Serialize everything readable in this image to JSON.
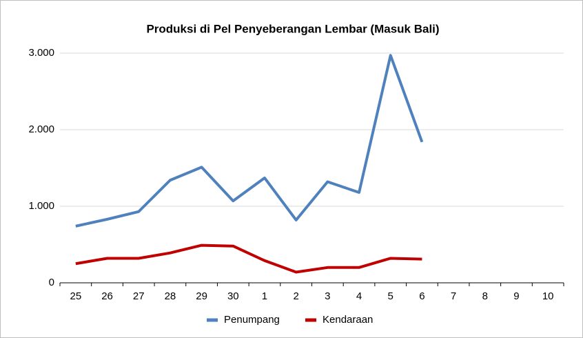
{
  "chart_data": {
    "type": "line",
    "title": "Produksi di Pel Penyeberangan Lembar (Masuk Bali)",
    "categories": [
      "25",
      "26",
      "27",
      "28",
      "29",
      "30",
      "1",
      "2",
      "3",
      "4",
      "5",
      "6",
      "7",
      "8",
      "9",
      "10"
    ],
    "series": [
      {
        "name": "Penumpang",
        "color": "#4f81bd",
        "values": [
          740,
          830,
          930,
          1340,
          1510,
          1070,
          1370,
          820,
          1320,
          1180,
          2970,
          1840,
          null,
          null,
          null,
          null
        ]
      },
      {
        "name": "Kendaraan",
        "color": "#c00000",
        "values": [
          250,
          320,
          320,
          390,
          490,
          480,
          290,
          140,
          200,
          200,
          320,
          310,
          null,
          null,
          null,
          null
        ]
      }
    ],
    "ylim": [
      0,
      3000
    ],
    "yticks": [
      0,
      {
        "value": 1000,
        "label": "1.000"
      },
      {
        "value": 2000,
        "label": "2.000"
      },
      {
        "value": 3000,
        "label": "3.000"
      }
    ],
    "grid": true,
    "legend": "bottom"
  }
}
